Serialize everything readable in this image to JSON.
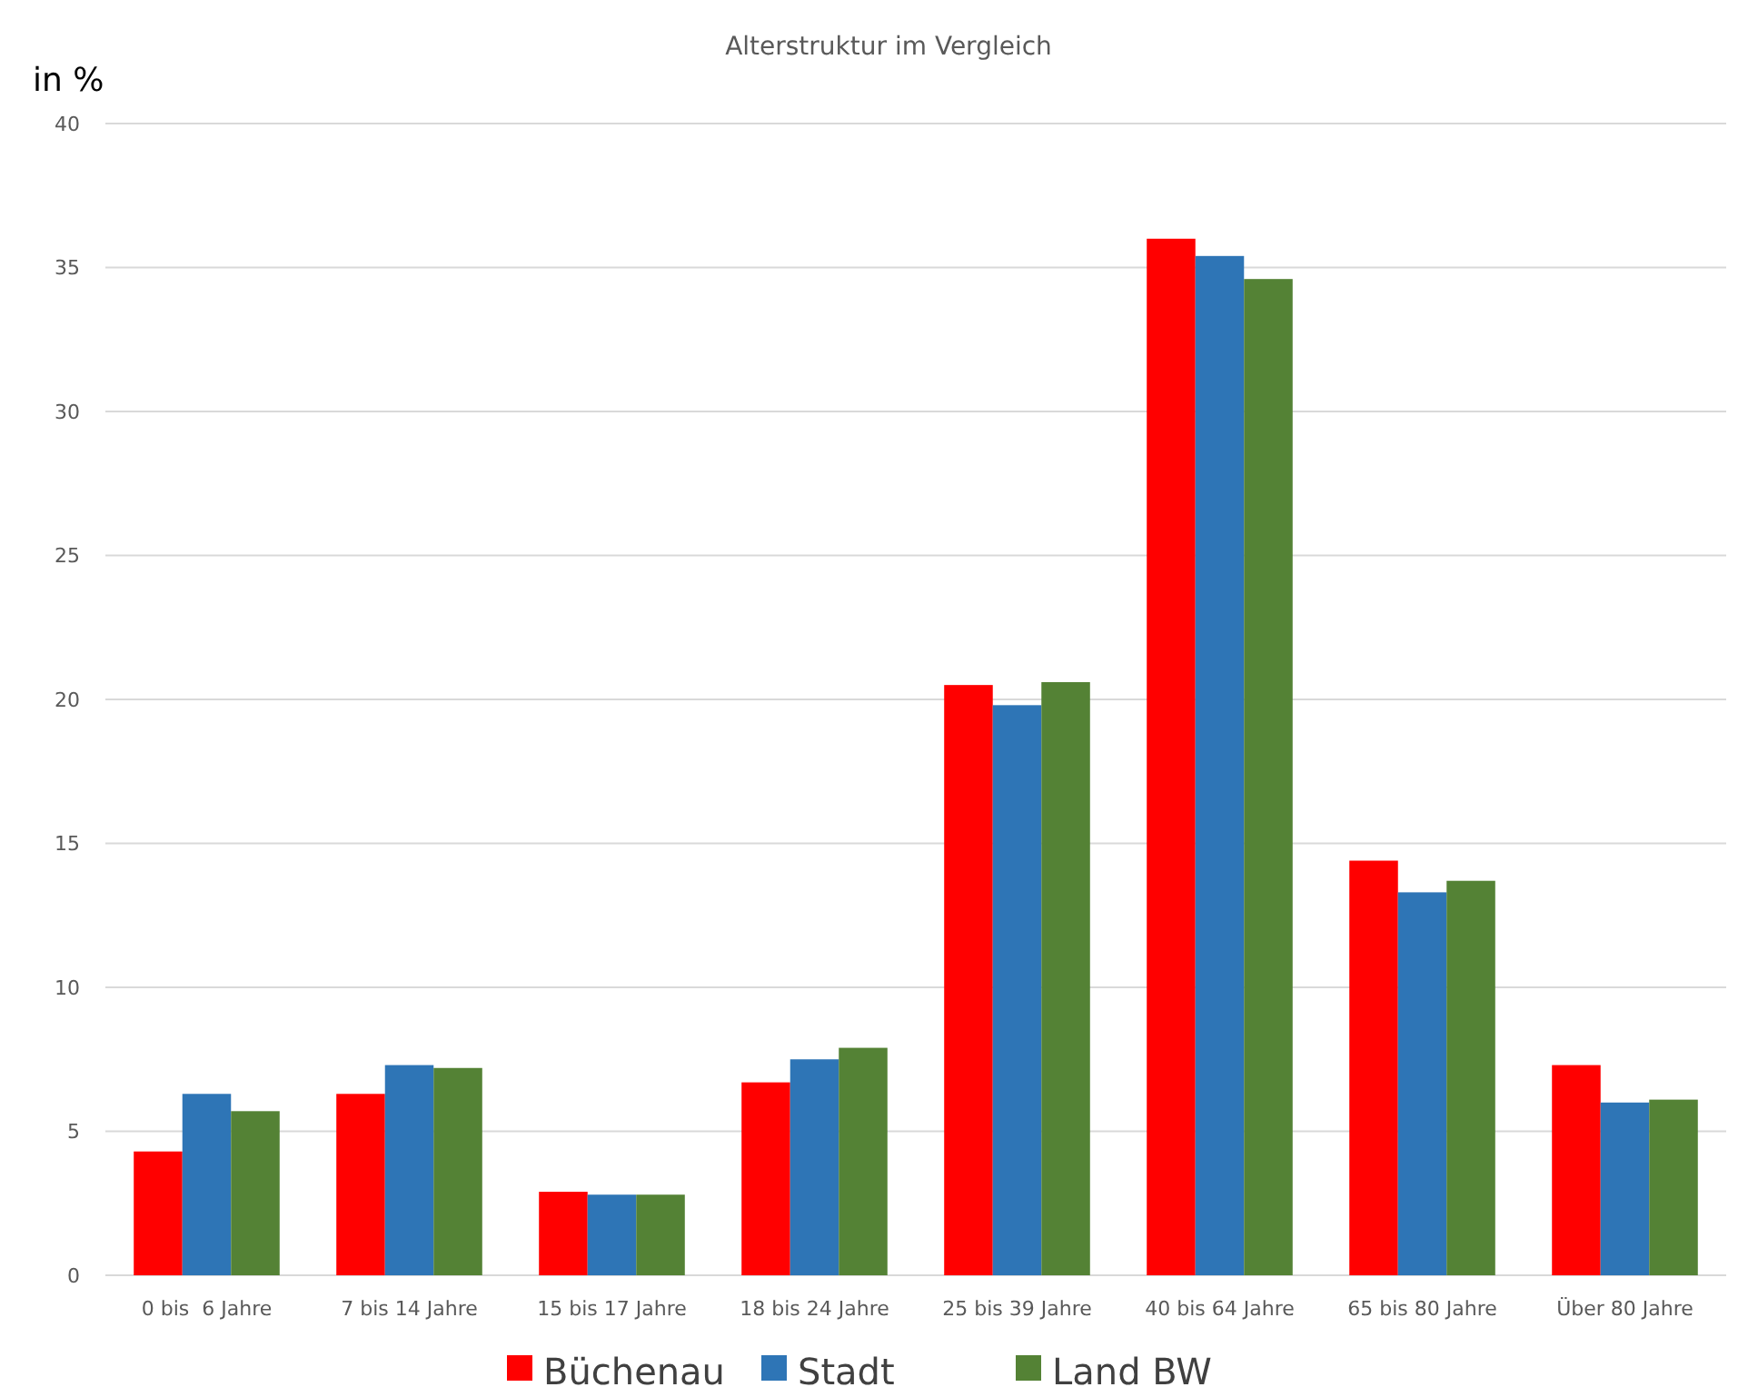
{
  "chart_data": {
    "type": "bar",
    "title": "Alterstruktur im Vergleich",
    "ylabel": "in %",
    "categories": [
      "0 bis  6 Jahre",
      "7 bis 14 Jahre",
      "15 bis 17 Jahre",
      "18 bis 24 Jahre",
      "25 bis 39 Jahre",
      "40 bis 64 Jahre",
      "65 bis 80 Jahre",
      "Über 80 Jahre"
    ],
    "series": [
      {
        "name": "Büchenau",
        "color": "#ff0000",
        "values": [
          4.3,
          6.3,
          2.9,
          6.7,
          20.5,
          36.0,
          14.4,
          7.3
        ]
      },
      {
        "name": "Stadt",
        "color": "#2e75b6",
        "values": [
          6.3,
          7.3,
          2.8,
          7.5,
          19.8,
          35.4,
          13.3,
          6.0
        ]
      },
      {
        "name": "Land BW",
        "color": "#548235",
        "values": [
          5.7,
          7.2,
          2.8,
          7.9,
          20.6,
          34.6,
          13.7,
          6.1
        ]
      }
    ],
    "ylim": [
      0,
      40
    ],
    "yticks": [
      0,
      5,
      10,
      15,
      20,
      25,
      30,
      35,
      40
    ],
    "grid": "y",
    "legend": "bottom"
  }
}
